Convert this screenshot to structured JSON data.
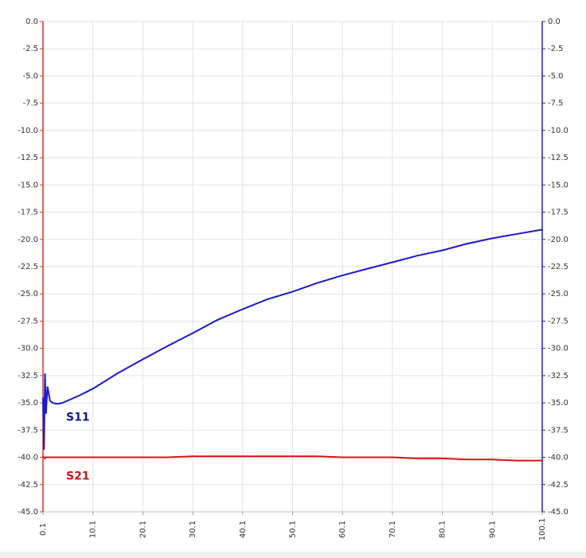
{
  "chart_data": {
    "type": "line",
    "x": [
      0.1,
      0.3,
      0.5,
      0.7,
      1.0,
      1.5,
      2.0,
      3.0,
      4.0,
      5.0,
      7.5,
      10.1,
      15.0,
      20.1,
      25.0,
      30.1,
      35.0,
      40.1,
      45.0,
      50.1,
      55.0,
      60.1,
      65.0,
      70.1,
      75.0,
      80.1,
      85.0,
      90.1,
      95.0,
      100.1
    ],
    "series": [
      {
        "name": "S11",
        "color": "#1a1acc",
        "axis": "y2",
        "label_color": "#0a1a8c",
        "values": [
          -34.5,
          -39.3,
          -32.3,
          -36.0,
          -33.5,
          -34.8,
          -35.0,
          -35.1,
          -35.0,
          -34.8,
          -34.3,
          -33.7,
          -32.3,
          -31.0,
          -29.8,
          -28.6,
          -27.4,
          -26.4,
          -25.5,
          -24.8,
          -24.0,
          -23.3,
          -22.7,
          -22.1,
          -21.5,
          -21.0,
          -20.4,
          -19.9,
          -19.5,
          -19.1
        ]
      },
      {
        "name": "S21",
        "color": "#dd1111",
        "label_color": "#cc1111",
        "values": [
          -39.9,
          -40.0,
          -40.1,
          -40.0,
          -40.0,
          -40.0,
          -40.0,
          -40.0,
          -40.0,
          -40.0,
          -40.0,
          -40.0,
          -40.0,
          -40.0,
          -40.0,
          -39.9,
          -39.9,
          -39.9,
          -39.9,
          -39.9,
          -39.9,
          -40.0,
          -40.0,
          -40.0,
          -40.1,
          -40.1,
          -40.2,
          -40.2,
          -40.3,
          -40.3
        ]
      }
    ],
    "xlim": [
      0.1,
      100.1
    ],
    "xticks": [
      0.1,
      10.1,
      20.1,
      30.1,
      40.1,
      50.1,
      60.1,
      70.1,
      80.1,
      90.1,
      100.1
    ],
    "ylim": [
      -45,
      0
    ],
    "yticks": [
      {
        "value": 0,
        "label": "0.0"
      },
      -2.5,
      {
        "value": -5,
        "label": "-5.0"
      },
      -7.5,
      {
        "value": -10,
        "label": "-10.0"
      },
      -12.5,
      {
        "value": -15,
        "label": "-15.0"
      },
      -17.5,
      {
        "value": -20,
        "label": "-20.0"
      },
      -22.5,
      {
        "value": -25,
        "label": "-25.0"
      },
      -27.5,
      {
        "value": -30,
        "label": "-30.0"
      },
      -32.5,
      {
        "value": -35,
        "label": "-35.0"
      },
      -37.5,
      {
        "value": -40,
        "label": "-40.0"
      },
      -42.5,
      {
        "value": -45,
        "label": "-45.0"
      }
    ],
    "y2lim": [
      -45,
      0
    ],
    "y2ticks": [
      {
        "value": 0,
        "label": "0.0"
      },
      -2.5,
      {
        "value": -5,
        "label": "-5.0"
      },
      -7.5,
      {
        "value": -10,
        "label": "-10.0"
      },
      -12.5,
      {
        "value": -15,
        "label": "-15.0"
      },
      -17.5,
      {
        "value": -20,
        "label": "-20.0"
      },
      -22.5,
      {
        "value": -25,
        "label": "-25.0"
      },
      -27.5,
      {
        "value": -30,
        "label": "-30.0"
      },
      -32.5,
      {
        "value": -35,
        "label": "-35.0"
      },
      -37.5,
      {
        "value": -40,
        "label": "-40.0"
      },
      -42.5,
      {
        "value": -45,
        "label": "-45.0"
      }
    ],
    "grid": true,
    "left_axis_color": "#e03030",
    "right_axis_color": "#2020dd"
  }
}
